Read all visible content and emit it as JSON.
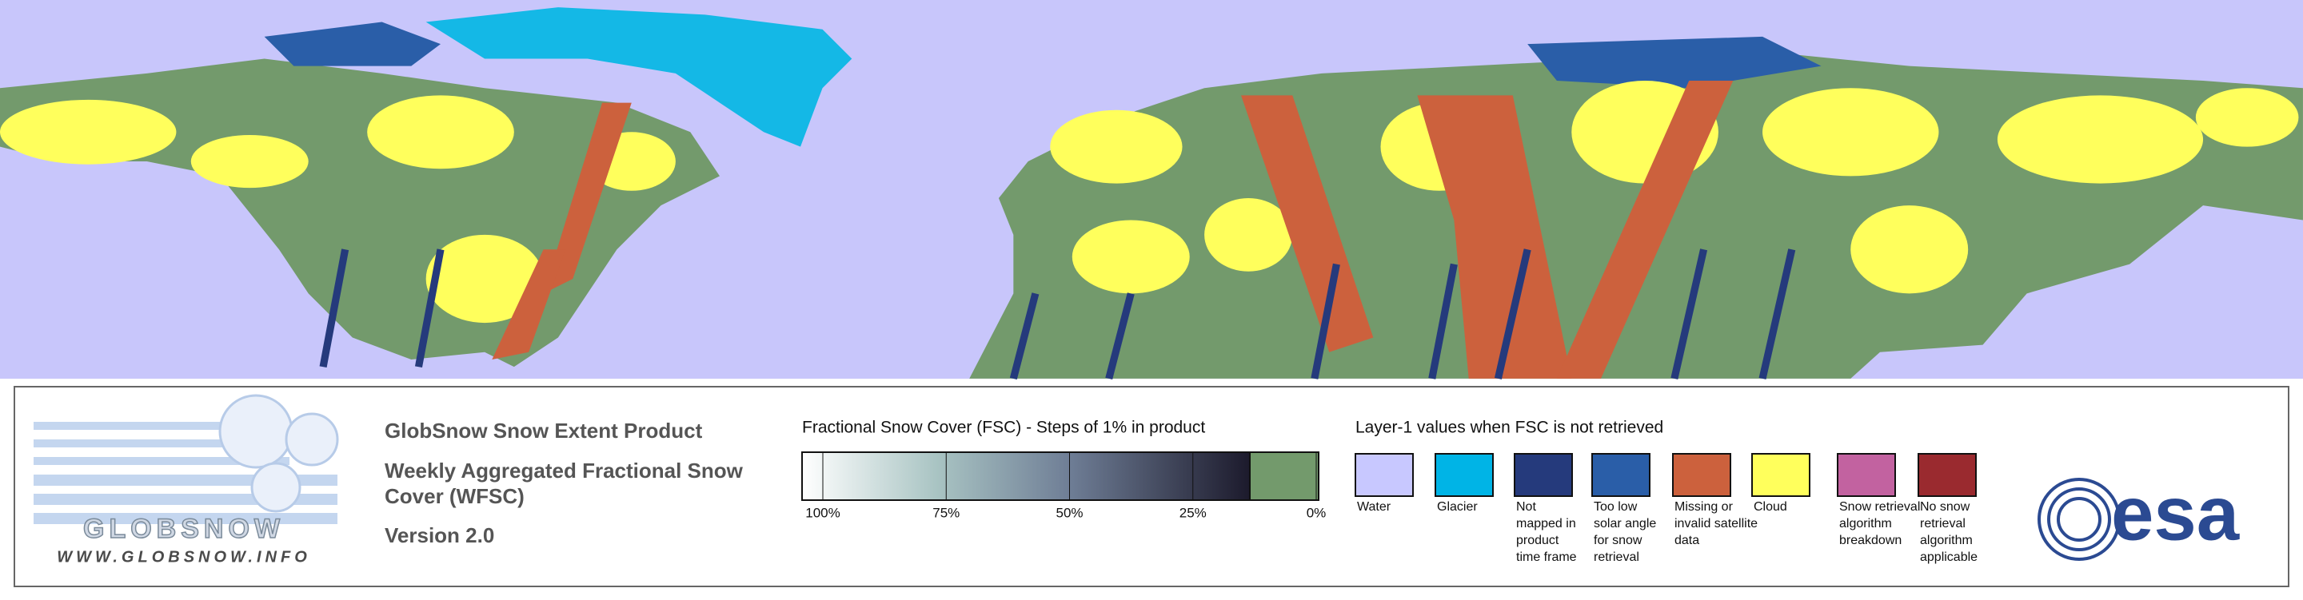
{
  "product": {
    "title": "GlobSnow Snow Extent Product",
    "subtitle_lines": [
      "Weekly Aggregated Fractional Snow",
      "Cover (WFSC)"
    ],
    "version": "Version 2.0"
  },
  "logo": {
    "name": "GLOBSNOW",
    "url": "WWW.GLOBSNOW.INFO",
    "agency": "esa"
  },
  "fsc_legend": {
    "title": "Fractional Snow Cover (FSC) - Steps of 1% in product",
    "tick_labels": [
      "100%",
      "75%",
      "50%",
      "25%",
      "0%"
    ]
  },
  "layer1_legend": {
    "title": "Layer-1 values when FSC is not retrieved",
    "items": [
      {
        "label_lines": [
          "Water"
        ],
        "color": "#c8c8ff"
      },
      {
        "label_lines": [
          "Glacier"
        ],
        "color": "#00b4e6"
      },
      {
        "label_lines": [
          "Not",
          "mapped in",
          "product",
          "time frame"
        ],
        "color": "#253a7c"
      },
      {
        "label_lines": [
          "Too low",
          "solar angle",
          "for snow",
          "retrieval"
        ],
        "color": "#2a5ea8"
      },
      {
        "label_lines": [
          "Missing or",
          "invalid satellite",
          "data"
        ],
        "color": "#cc613d"
      },
      {
        "label_lines": [
          "Cloud"
        ],
        "color": "#ffff5c"
      },
      {
        "label_lines": [
          "Snow retrieval",
          "algorithm",
          "breakdown"
        ],
        "color": "#c262a0"
      },
      {
        "label_lines": [
          "No snow",
          "retrieval",
          "algorithm",
          "applicable"
        ],
        "color": "#9a2a2f"
      }
    ]
  }
}
